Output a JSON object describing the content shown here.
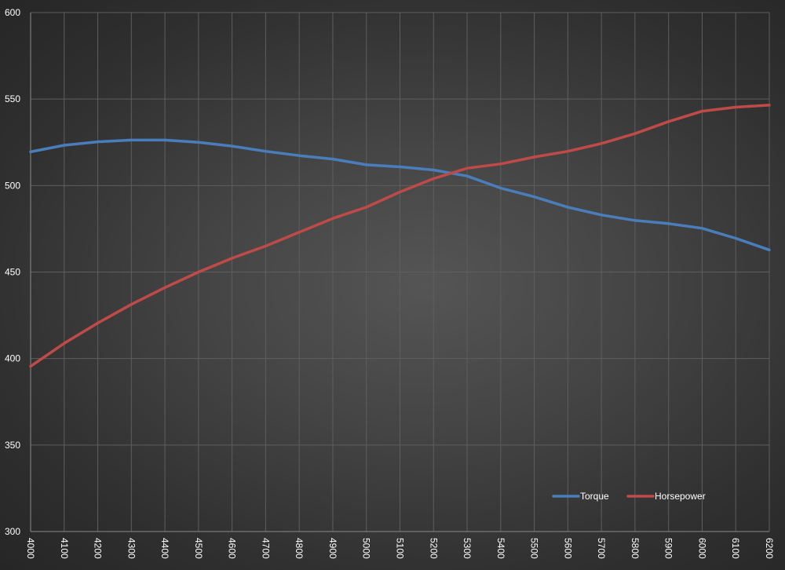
{
  "chart_data": {
    "type": "line",
    "title": "",
    "xlabel": "",
    "ylabel": "",
    "x": [
      4000,
      4100,
      4200,
      4300,
      4400,
      4500,
      4600,
      4700,
      4800,
      4900,
      5000,
      5100,
      5200,
      5300,
      5400,
      5500,
      5600,
      5700,
      5800,
      5900,
      6000,
      6100,
      6200
    ],
    "x_tick_labels": [
      "4000",
      "4100",
      "4200",
      "4300",
      "4400",
      "4500",
      "4600",
      "4700",
      "4800",
      "4900",
      "5000",
      "5100",
      "5200",
      "5300",
      "5400",
      "5500",
      "5600",
      "5700",
      "5800",
      "5900",
      "6000",
      "6100",
      "6200"
    ],
    "ylim": [
      300,
      600
    ],
    "y_ticks": [
      300,
      350,
      400,
      450,
      500,
      550,
      600
    ],
    "y_tick_labels": [
      "300",
      "350",
      "400",
      "450",
      "500",
      "550",
      "600"
    ],
    "grid": true,
    "legend_position": "bottom-right",
    "background": "#454545",
    "series": [
      {
        "name": "Torque",
        "color": "#4a7ebb",
        "values": [
          519.5,
          523.3,
          525.3,
          526.3,
          526.3,
          525.0,
          522.8,
          519.8,
          517.3,
          515.3,
          512.0,
          510.8,
          509.0,
          505.5,
          498.5,
          493.5,
          487.5,
          483.0,
          479.8,
          478.0,
          475.3,
          469.5,
          462.8
        ]
      },
      {
        "name": "Horsepower",
        "color": "#be4b48",
        "values": [
          395.5,
          408.8,
          420.5,
          431.3,
          441.0,
          450.0,
          458.0,
          465.0,
          473.0,
          481.0,
          487.5,
          496.3,
          504.0,
          510.0,
          512.5,
          516.5,
          519.8,
          524.3,
          530.0,
          537.0,
          543.0,
          545.3,
          546.5
        ]
      }
    ]
  }
}
